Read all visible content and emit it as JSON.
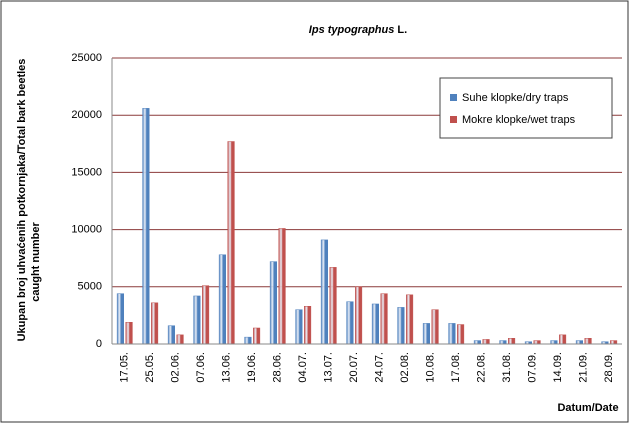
{
  "chart_data": {
    "type": "bar",
    "title_species": "Ips typographus",
    "title_author": "L.",
    "ylabel": [
      "Ukupan broj uhvaćenih potkornjaka/Total bark beetles",
      "caught number"
    ],
    "xlabel": "Datum/Date",
    "categories": [
      "17.05.",
      "25.05.",
      "02.06.",
      "07.06.",
      "13.06.",
      "19.06.",
      "28.06.",
      "04.07.",
      "13.07.",
      "20.07.",
      "24.07.",
      "02.08.",
      "10.08.",
      "17.08.",
      "22.08.",
      "31.08.",
      "07.09.",
      "14.09.",
      "21.09.",
      "28.09."
    ],
    "series": [
      {
        "name": "Suhe klopke/dry traps",
        "color": "#4f81bd",
        "values": [
          4400,
          20600,
          1600,
          4200,
          7800,
          600,
          7200,
          3000,
          9100,
          3700,
          3500,
          3200,
          1800,
          1800,
          300,
          300,
          200,
          300,
          300,
          200
        ]
      },
      {
        "name": "Mokre klopke/wet traps",
        "color": "#c0504d",
        "values": [
          1900,
          3600,
          800,
          5100,
          17700,
          1400,
          10100,
          3300,
          6700,
          5000,
          4400,
          4300,
          3000,
          1700,
          400,
          500,
          300,
          800,
          500,
          300
        ]
      }
    ],
    "ylim": [
      0,
      25000
    ],
    "yticks": [
      0,
      5000,
      10000,
      15000,
      20000,
      25000
    ],
    "grid": true,
    "legend": "upper right"
  }
}
